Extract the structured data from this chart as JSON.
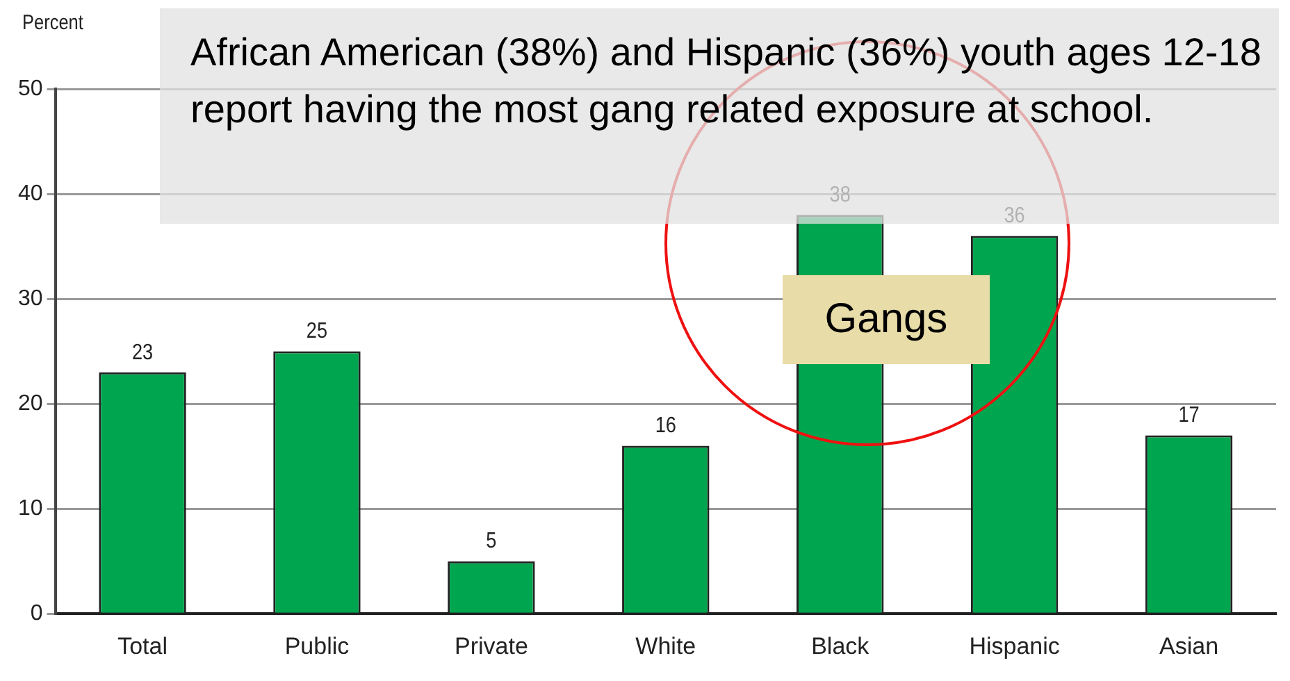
{
  "chart_data": {
    "type": "bar",
    "ylabel": "Percent",
    "categories": [
      "Total",
      "Public",
      "Private",
      "White",
      "Black",
      "Hispanic",
      "Asian"
    ],
    "values": [
      23,
      25,
      5,
      16,
      38,
      36,
      17
    ],
    "color": "#00a54f",
    "ylim": [
      0,
      50
    ],
    "yticks": [
      0,
      10,
      20,
      30,
      40,
      50
    ],
    "grid": "y",
    "legend": false,
    "data_labels": true,
    "annotations": [
      "African American (38%) and Hispanic (36%) youth ages 12-18 report having the most gang related exposure at school.",
      "Gangs"
    ]
  }
}
